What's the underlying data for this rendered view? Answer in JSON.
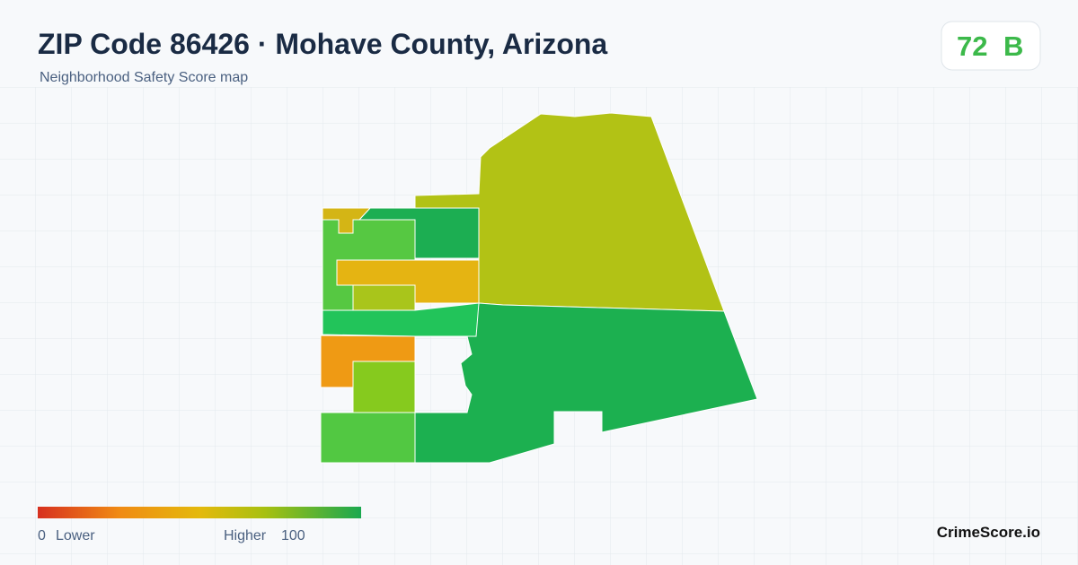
{
  "header": {
    "title": "ZIP Code 86426 · Mohave County, Arizona",
    "subtitle": "Neighborhood Safety Score map"
  },
  "badge": {
    "score": "72",
    "grade": "B"
  },
  "legend": {
    "min": "0",
    "min_label": "Lower",
    "max_label": "Higher",
    "max": "100"
  },
  "brand": "CrimeScore.io"
}
